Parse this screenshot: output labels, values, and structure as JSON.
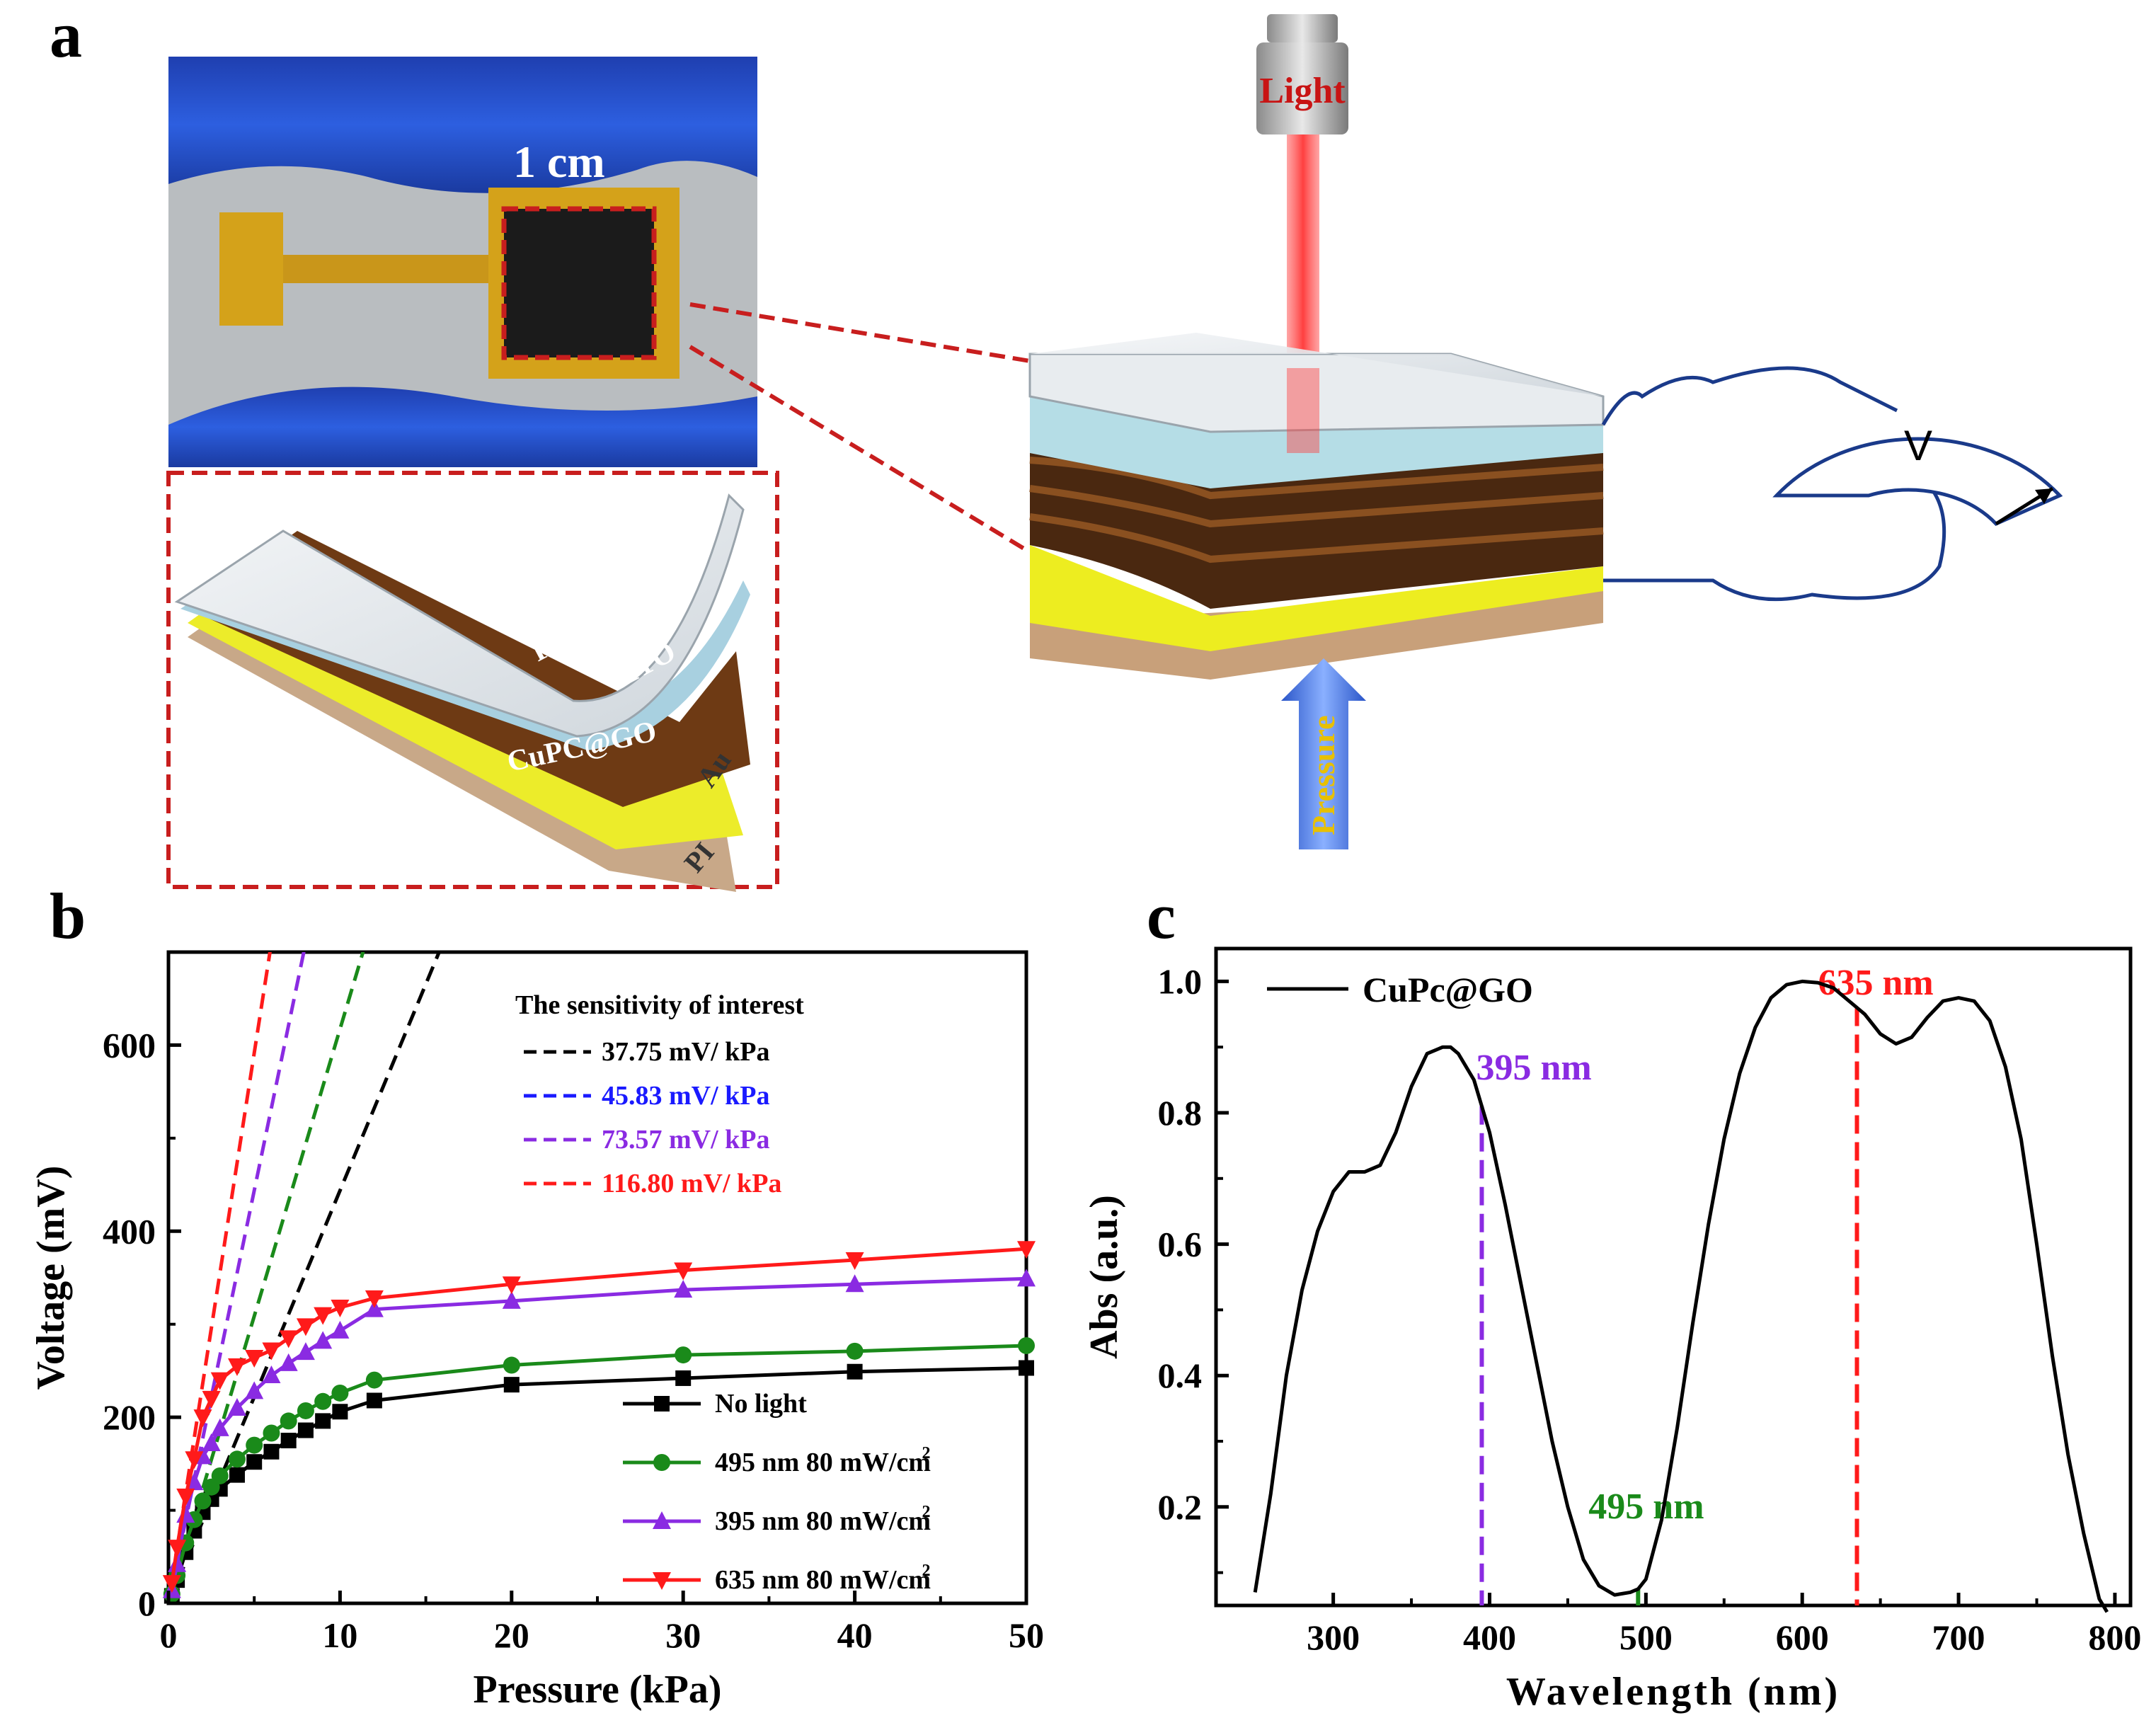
{
  "panels": {
    "a": "a",
    "b": "b",
    "c": "c"
  },
  "panel_a": {
    "scale_bar": "1 cm",
    "light_label": "Light",
    "pressure_label": "Pressure",
    "meter_label": "V",
    "layers": [
      "PET",
      "ITO",
      "CuPC@GO",
      "Au",
      "PI"
    ]
  },
  "colors": {
    "black": "#000000",
    "green": "#1a8a1a",
    "purple": "#8a2be2",
    "red": "#ff1a1a",
    "blue": "#1a1aff"
  },
  "chart_data": [
    {
      "id": "b",
      "type": "line",
      "xlabel": "Pressure (kPa)",
      "ylabel": "Voltage (mV)",
      "xlim": [
        0,
        50
      ],
      "ylim": [
        0,
        700
      ],
      "xticks": [
        0,
        10,
        20,
        30,
        40,
        50
      ],
      "yticks": [
        0,
        200,
        400,
        600
      ],
      "sensitivity_title": "The sensitivity of interest",
      "sensitivity_lines": [
        {
          "label": "37.75 mV/ kPa",
          "color": "#000000",
          "x": [
            0,
            16
          ],
          "y": [
            0,
            710
          ]
        },
        {
          "label": "45.83 mV/ kPa",
          "color": "#1a1aff",
          "x": [
            0,
            0
          ],
          "y": [
            0,
            0
          ]
        },
        {
          "label": "73.57 mV/ kPa",
          "color": "#8a2be2",
          "x": [
            0,
            8
          ],
          "y": [
            0,
            710
          ]
        },
        {
          "label": "116.80 mV/ kPa",
          "color": "#ff1a1a",
          "x": [
            0,
            6
          ],
          "y": [
            0,
            710
          ]
        },
        {
          "label": "",
          "color": "#1a8a1a",
          "x": [
            0,
            11.5
          ],
          "y": [
            0,
            710
          ]
        }
      ],
      "series": [
        {
          "name": "No light",
          "color": "#000000",
          "marker": "square",
          "x": [
            0.2,
            0.5,
            1,
            1.5,
            2,
            2.5,
            3,
            4,
            5,
            6,
            7,
            8,
            9,
            10,
            12,
            20,
            30,
            40,
            50
          ],
          "y": [
            8,
            25,
            55,
            78,
            98,
            112,
            123,
            138,
            152,
            163,
            175,
            186,
            196,
            206,
            218,
            235,
            242,
            249,
            253
          ]
        },
        {
          "name": "495 nm 80 mW/cm²",
          "color": "#1a8a1a",
          "marker": "circle",
          "x": [
            0.2,
            0.5,
            1,
            1.5,
            2,
            2.5,
            3,
            4,
            5,
            6,
            7,
            8,
            9,
            10,
            12,
            20,
            30,
            40,
            50
          ],
          "y": [
            10,
            30,
            65,
            90,
            110,
            125,
            137,
            155,
            170,
            183,
            196,
            207,
            217,
            226,
            240,
            256,
            267,
            271,
            277
          ]
        },
        {
          "name": "395 nm 80 mW/cm²",
          "color": "#8a2be2",
          "marker": "triangle-up",
          "x": [
            0.2,
            0.5,
            1,
            1.5,
            2,
            2.5,
            3,
            4,
            5,
            6,
            7,
            8,
            9,
            10,
            12,
            20,
            30,
            40,
            50
          ],
          "y": [
            14,
            42,
            95,
            130,
            158,
            172,
            188,
            210,
            228,
            245,
            258,
            270,
            282,
            293,
            316,
            325,
            337,
            343,
            349
          ]
        },
        {
          "name": "635 nm 80 mW/cm²",
          "color": "#ff1a1a",
          "marker": "triangle-down",
          "x": [
            0.2,
            0.5,
            1,
            1.5,
            2,
            2.5,
            3,
            4,
            5,
            6,
            7,
            8,
            9,
            10,
            12,
            20,
            30,
            40,
            50
          ],
          "y": [
            22,
            60,
            115,
            155,
            200,
            220,
            240,
            255,
            264,
            272,
            285,
            298,
            310,
            318,
            328,
            343,
            358,
            369,
            381
          ]
        }
      ],
      "legend_labels": [
        "No light",
        "495 nm 80 mW/cm",
        "395 nm 80 mW/cm",
        "635 nm 80 mW/cm"
      ],
      "superscript": "2"
    },
    {
      "id": "c",
      "type": "line",
      "xlabel": "Wavelength (nm)",
      "ylabel": "Abs (a.u.)",
      "xlim": [
        225,
        810
      ],
      "ylim": [
        0.05,
        1.05
      ],
      "xticks": [
        300,
        400,
        500,
        600,
        700,
        800
      ],
      "yticks": [
        0.2,
        0.4,
        0.6,
        0.8,
        1.0
      ],
      "ytick_labels": [
        "0.2",
        "0.4",
        "0.6",
        "0.8",
        "1.0"
      ],
      "series": [
        {
          "name": "CuPc@GO",
          "color": "#000000",
          "x": [
            250,
            260,
            270,
            280,
            290,
            300,
            310,
            320,
            330,
            340,
            350,
            360,
            370,
            375,
            380,
            390,
            400,
            410,
            420,
            430,
            440,
            450,
            460,
            470,
            480,
            490,
            495,
            500,
            510,
            520,
            530,
            540,
            550,
            560,
            570,
            580,
            590,
            600,
            610,
            620,
            630,
            635,
            640,
            650,
            660,
            670,
            680,
            690,
            700,
            710,
            720,
            730,
            740,
            750,
            760,
            770,
            780,
            790,
            795
          ],
          "y": [
            0.07,
            0.22,
            0.4,
            0.53,
            0.62,
            0.68,
            0.71,
            0.71,
            0.72,
            0.77,
            0.84,
            0.89,
            0.9,
            0.9,
            0.89,
            0.85,
            0.77,
            0.66,
            0.54,
            0.42,
            0.3,
            0.2,
            0.12,
            0.08,
            0.066,
            0.07,
            0.075,
            0.09,
            0.18,
            0.32,
            0.48,
            0.63,
            0.76,
            0.86,
            0.93,
            0.975,
            0.995,
            1.0,
            0.998,
            0.99,
            0.97,
            0.96,
            0.95,
            0.92,
            0.905,
            0.915,
            0.945,
            0.97,
            0.975,
            0.97,
            0.94,
            0.87,
            0.76,
            0.6,
            0.43,
            0.28,
            0.16,
            0.06,
            0.04
          ]
        }
      ],
      "markers": [
        {
          "label": "395 nm",
          "x": 395,
          "color": "#8a2be2"
        },
        {
          "label": "495 nm",
          "x": 495,
          "color": "#1a8a1a"
        },
        {
          "label": "635 nm",
          "x": 635,
          "color": "#ff1a1a"
        }
      ]
    }
  ]
}
